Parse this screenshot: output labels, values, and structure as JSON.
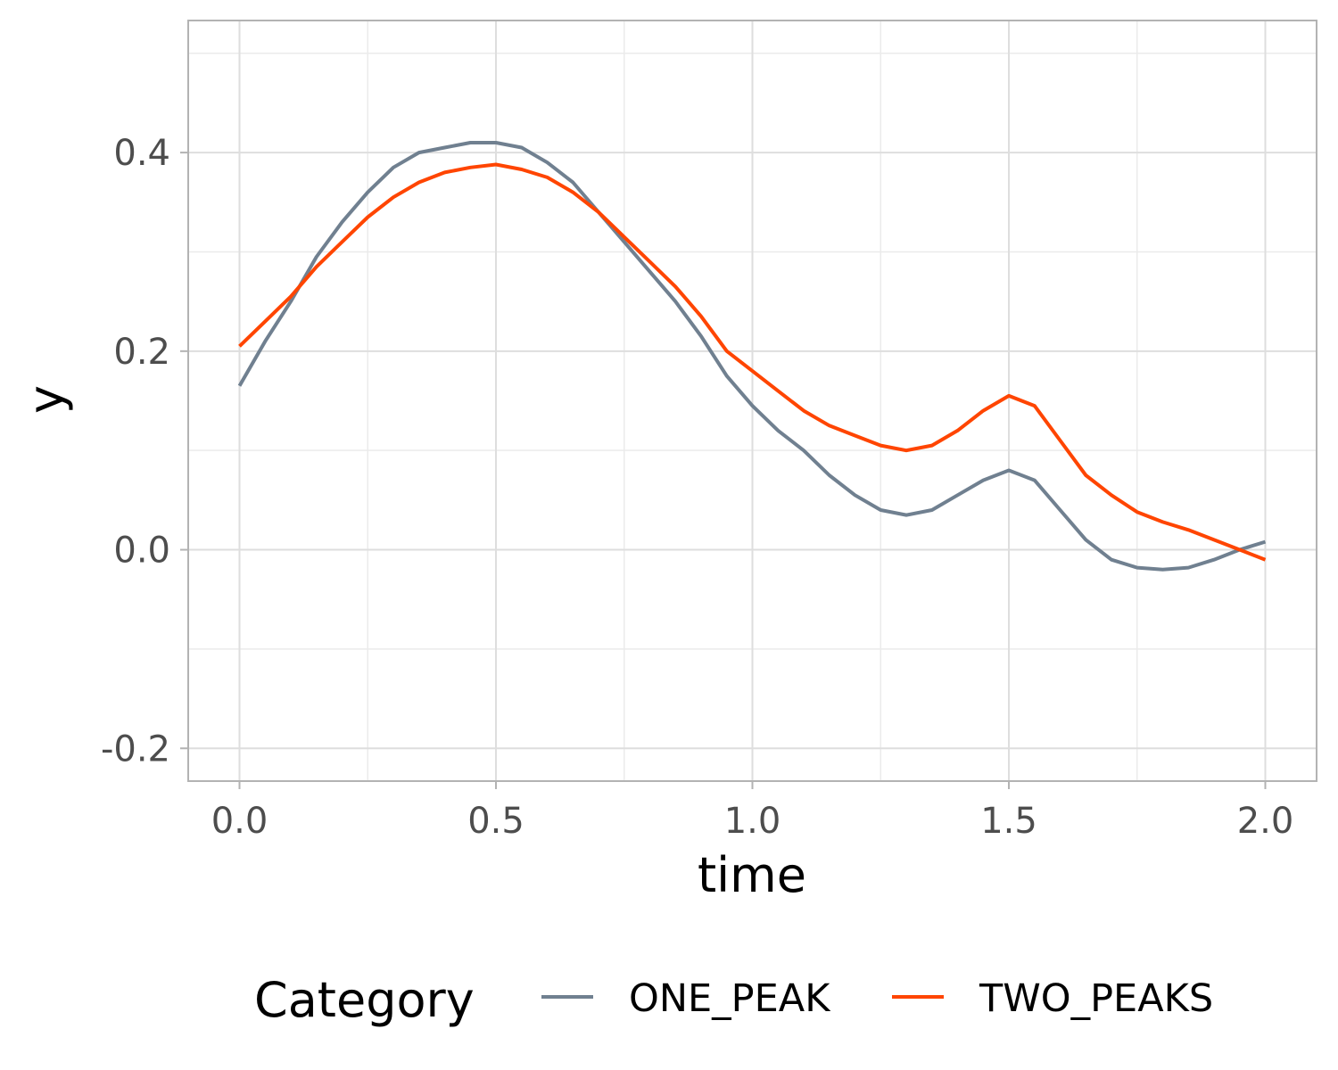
{
  "chart_data": {
    "type": "line",
    "xlabel": "time",
    "ylabel": "y",
    "xlim": [
      -0.1,
      2.1
    ],
    "ylim": [
      -0.233,
      0.533
    ],
    "x_ticks": [
      "0.0",
      "0.5",
      "1.0",
      "1.5",
      "2.0"
    ],
    "y_ticks": [
      "-0.2",
      "0.0",
      "0.2",
      "0.4"
    ],
    "grid": true,
    "legend": {
      "title": "Category",
      "position": "bottom"
    },
    "series": [
      {
        "name": "ONE_PEAK",
        "color": "#708090",
        "x": [
          0.0,
          0.05,
          0.1,
          0.15,
          0.2,
          0.25,
          0.3,
          0.35,
          0.4,
          0.45,
          0.5,
          0.55,
          0.6,
          0.65,
          0.7,
          0.75,
          0.8,
          0.85,
          0.9,
          0.95,
          1.0,
          1.05,
          1.1,
          1.15,
          1.2,
          1.25,
          1.3,
          1.35,
          1.4,
          1.45,
          1.5,
          1.55,
          1.6,
          1.65,
          1.7,
          1.75,
          1.8,
          1.85,
          1.9,
          1.95,
          2.0
        ],
        "y": [
          0.165,
          0.21,
          0.25,
          0.295,
          0.33,
          0.36,
          0.385,
          0.4,
          0.405,
          0.41,
          0.41,
          0.405,
          0.39,
          0.37,
          0.34,
          0.31,
          0.28,
          0.25,
          0.215,
          0.175,
          0.145,
          0.12,
          0.1,
          0.075,
          0.055,
          0.04,
          0.035,
          0.04,
          0.055,
          0.07,
          0.08,
          0.07,
          0.04,
          0.01,
          -0.01,
          -0.018,
          -0.02,
          -0.018,
          -0.01,
          0.0,
          0.008
        ]
      },
      {
        "name": "TWO_PEAKS",
        "color": "#ff4500",
        "x": [
          0.0,
          0.05,
          0.1,
          0.15,
          0.2,
          0.25,
          0.3,
          0.35,
          0.4,
          0.45,
          0.5,
          0.55,
          0.6,
          0.65,
          0.7,
          0.75,
          0.8,
          0.85,
          0.9,
          0.95,
          1.0,
          1.05,
          1.1,
          1.15,
          1.2,
          1.25,
          1.3,
          1.35,
          1.4,
          1.45,
          1.5,
          1.55,
          1.6,
          1.65,
          1.7,
          1.75,
          1.8,
          1.85,
          1.9,
          1.95,
          2.0
        ],
        "y": [
          0.205,
          0.23,
          0.255,
          0.285,
          0.31,
          0.335,
          0.355,
          0.37,
          0.38,
          0.385,
          0.388,
          0.383,
          0.375,
          0.36,
          0.34,
          0.315,
          0.29,
          0.265,
          0.235,
          0.2,
          0.18,
          0.16,
          0.14,
          0.125,
          0.115,
          0.105,
          0.1,
          0.105,
          0.12,
          0.14,
          0.155,
          0.145,
          0.11,
          0.075,
          0.055,
          0.038,
          0.028,
          0.02,
          0.01,
          0.0,
          -0.01
        ]
      }
    ]
  }
}
